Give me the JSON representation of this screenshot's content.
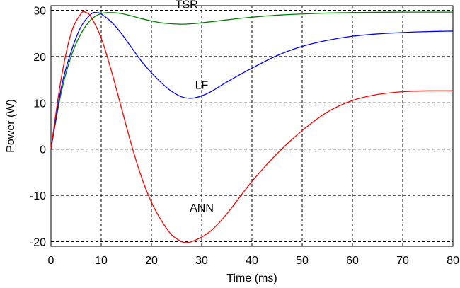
{
  "chart_data": {
    "type": "line",
    "title": "",
    "xlabel": "Time (ms)",
    "ylabel": "Power (W)",
    "xlim": [
      0,
      80
    ],
    "ylim": [
      -21,
      31
    ],
    "xticks": [
      0,
      10,
      20,
      30,
      40,
      50,
      60,
      70,
      80
    ],
    "yticks": [
      -20,
      -10,
      0,
      10,
      20,
      30
    ],
    "grid": true,
    "grid_style": "dashed",
    "legend": "none",
    "series": [
      {
        "label": "TSR",
        "color": "#008000",
        "label_at": [
          27,
          30.5
        ],
        "points": [
          [
            0,
            0
          ],
          [
            2,
            12
          ],
          [
            4,
            20
          ],
          [
            6,
            25
          ],
          [
            8,
            28
          ],
          [
            10,
            29.3
          ],
          [
            12,
            29.5
          ],
          [
            14,
            29.3
          ],
          [
            16,
            28.8
          ],
          [
            18,
            28.2
          ],
          [
            20,
            27.7
          ],
          [
            22,
            27.3
          ],
          [
            24,
            27.1
          ],
          [
            26,
            27.0
          ],
          [
            28,
            27.1
          ],
          [
            30,
            27.3
          ],
          [
            34,
            27.8
          ],
          [
            38,
            28.3
          ],
          [
            42,
            28.7
          ],
          [
            46,
            29.0
          ],
          [
            50,
            29.2
          ],
          [
            55,
            29.4
          ],
          [
            60,
            29.5
          ],
          [
            70,
            29.6
          ],
          [
            80,
            29.6
          ]
        ]
      },
      {
        "label": "LF",
        "color": "#0000FF",
        "label_at": [
          30,
          13
        ],
        "points": [
          [
            0,
            0
          ],
          [
            2,
            13
          ],
          [
            4,
            21
          ],
          [
            6,
            26.5
          ],
          [
            8,
            29.2
          ],
          [
            9,
            29.5
          ],
          [
            10,
            29.2
          ],
          [
            12,
            27.5
          ],
          [
            14,
            25
          ],
          [
            16,
            22
          ],
          [
            18,
            19
          ],
          [
            20,
            16.5
          ],
          [
            22,
            14.3
          ],
          [
            24,
            12.5
          ],
          [
            26,
            11.3
          ],
          [
            28,
            11.0
          ],
          [
            30,
            11.5
          ],
          [
            32,
            12.5
          ],
          [
            35,
            14.5
          ],
          [
            40,
            17.5
          ],
          [
            45,
            20.2
          ],
          [
            50,
            22.2
          ],
          [
            55,
            23.5
          ],
          [
            60,
            24.4
          ],
          [
            65,
            24.9
          ],
          [
            70,
            25.2
          ],
          [
            75,
            25.4
          ],
          [
            80,
            25.5
          ]
        ]
      },
      {
        "label": "ANN",
        "color": "#FF0000",
        "label_at": [
          30,
          -13.5
        ],
        "points": [
          [
            0,
            0
          ],
          [
            2,
            15
          ],
          [
            4,
            25
          ],
          [
            6,
            29.3
          ],
          [
            7,
            29.5
          ],
          [
            8,
            28.5
          ],
          [
            10,
            24
          ],
          [
            12,
            17
          ],
          [
            14,
            9
          ],
          [
            16,
            1
          ],
          [
            18,
            -6
          ],
          [
            20,
            -11.5
          ],
          [
            22,
            -15.5
          ],
          [
            24,
            -18.5
          ],
          [
            26,
            -20
          ],
          [
            27,
            -20.2
          ],
          [
            28,
            -20
          ],
          [
            30,
            -19
          ],
          [
            32,
            -17.5
          ],
          [
            35,
            -14
          ],
          [
            40,
            -7
          ],
          [
            45,
            -1
          ],
          [
            50,
            4
          ],
          [
            55,
            8
          ],
          [
            60,
            10.5
          ],
          [
            65,
            11.8
          ],
          [
            70,
            12.4
          ],
          [
            75,
            12.6
          ],
          [
            80,
            12.6
          ]
        ]
      }
    ]
  }
}
